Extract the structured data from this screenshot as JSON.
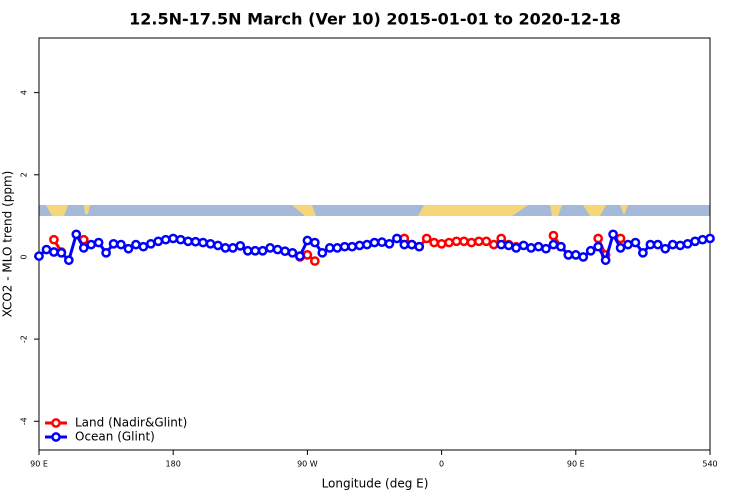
{
  "chart_data": {
    "type": "line",
    "title": "12.5N-17.5N March (Ver 10)   2015-01-01 to 2020-12-18",
    "x_label": "Longitude (deg E)",
    "y_label": "XCO2 - MLO trend (ppm)",
    "x": [
      90,
      95,
      100,
      105,
      110,
      115,
      120,
      125,
      130,
      135,
      140,
      145,
      150,
      155,
      160,
      165,
      170,
      175,
      180,
      185,
      190,
      195,
      200,
      205,
      210,
      215,
      220,
      225,
      230,
      235,
      240,
      245,
      250,
      255,
      260,
      265,
      270,
      275,
      280,
      285,
      290,
      295,
      300,
      305,
      310,
      315,
      320,
      325,
      330,
      335,
      340,
      345,
      350,
      355,
      360,
      365,
      370,
      375,
      380,
      385,
      390,
      395,
      400,
      405,
      410,
      415,
      420,
      425,
      430,
      435,
      440,
      445,
      450,
      455,
      460,
      465,
      470,
      475,
      480,
      485,
      490,
      495,
      500,
      505,
      510,
      515,
      520,
      525,
      530,
      535,
      540
    ],
    "series": [
      {
        "name": "Land (Nadir&Glint)",
        "color": "#ff0000",
        "values": [
          null,
          null,
          0.42,
          0.12,
          null,
          null,
          0.42,
          null,
          null,
          null,
          null,
          null,
          null,
          null,
          null,
          null,
          null,
          null,
          null,
          null,
          null,
          null,
          null,
          null,
          null,
          null,
          null,
          null,
          null,
          null,
          null,
          null,
          null,
          null,
          null,
          0.0,
          0.05,
          -0.1,
          null,
          null,
          null,
          null,
          null,
          null,
          null,
          null,
          null,
          null,
          null,
          0.45,
          0.3,
          0.25,
          0.45,
          0.35,
          0.32,
          0.35,
          0.38,
          0.38,
          0.35,
          0.38,
          0.38,
          0.3,
          0.45,
          0.3,
          0.25,
          null,
          null,
          null,
          null,
          0.52,
          0.25,
          0.05,
          null,
          null,
          null,
          0.45,
          0.05,
          null,
          0.45,
          null,
          null,
          null,
          null,
          null,
          null,
          null,
          null,
          null,
          null,
          null,
          null
        ]
      },
      {
        "name": "Ocean (Glint)",
        "color": "#0000ff",
        "values": [
          0.02,
          0.18,
          0.12,
          0.1,
          -0.08,
          0.55,
          0.22,
          0.3,
          0.35,
          0.1,
          0.32,
          0.3,
          0.2,
          0.3,
          0.25,
          0.32,
          0.38,
          0.42,
          0.45,
          0.42,
          0.38,
          0.37,
          0.35,
          0.32,
          0.28,
          0.22,
          0.22,
          0.27,
          0.15,
          0.15,
          0.15,
          0.22,
          0.18,
          0.14,
          0.1,
          0.02,
          0.4,
          0.35,
          0.1,
          0.22,
          0.22,
          0.25,
          0.25,
          0.28,
          0.3,
          0.35,
          0.36,
          0.32,
          0.45,
          0.3,
          0.3,
          0.25,
          null,
          null,
          null,
          null,
          null,
          null,
          null,
          null,
          null,
          null,
          0.3,
          0.28,
          0.22,
          0.28,
          0.22,
          0.25,
          0.2,
          0.3,
          0.25,
          0.05,
          0.05,
          0.0,
          0.15,
          0.25,
          -0.08,
          0.55,
          0.22,
          0.3,
          0.35,
          0.1,
          0.3,
          0.3,
          0.2,
          0.3,
          0.28,
          0.32,
          0.38,
          0.42,
          0.45
        ]
      }
    ],
    "xlim": [
      90,
      540
    ],
    "xticks": [
      {
        "value": 90,
        "label": "90 E"
      },
      180,
      {
        "value": 270,
        "label": "90 W"
      },
      {
        "value": 360,
        "label": "0"
      },
      {
        "value": 450,
        "label": "90 E"
      },
      540
    ],
    "ylim": [
      -4.7,
      5.33
    ],
    "yticks": [
      -4,
      -2,
      0,
      2,
      4
    ],
    "grid": false,
    "legend": "bottomleft"
  }
}
